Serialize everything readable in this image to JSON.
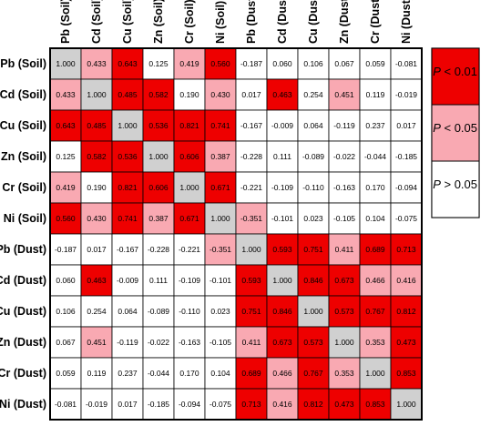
{
  "chart_data": {
    "type": "heatmap",
    "rows": [
      "Pb (Soil)",
      "Cd (Soil)",
      "Cu (Soil)",
      "Zn (Soil)",
      "Cr (Soil)",
      "Ni (Soil)",
      "Pb (Dust)",
      "Cd (Dust)",
      "Cu (Dust)",
      "Zn (Dust)",
      "Cr (Dust)",
      "Ni (Dust)"
    ],
    "columns": [
      "Pb (Soil)",
      "Cd (Soil)",
      "Cu (Soil)",
      "Zn (Soil)",
      "Cr (Soil)",
      "Ni (Soil)",
      "Pb (Dust)",
      "Cd (Dust)",
      "Cu (Dust)",
      "Zn (Dust)",
      "Cr (Dust)",
      "Ni (Dust)"
    ],
    "values": [
      [
        "1.000",
        "0.433",
        "0.643",
        "0.125",
        "0.419",
        "0.560",
        "-0.187",
        "0.060",
        "0.106",
        "0.067",
        "0.059",
        "-0.081"
      ],
      [
        "0.433",
        "1.000",
        "0.485",
        "0.582",
        "0.190",
        "0.430",
        "0.017",
        "0.463",
        "0.254",
        "0.451",
        "0.119",
        "-0.019"
      ],
      [
        "0.643",
        "0.485",
        "1.000",
        "0.536",
        "0.821",
        "0.741",
        "-0.167",
        "-0.009",
        "0.064",
        "-0.119",
        "0.237",
        "0.017"
      ],
      [
        "0.125",
        "0.582",
        "0.536",
        "1.000",
        "0.606",
        "0.387",
        "-0.228",
        "0.111",
        "-0.089",
        "-0.022",
        "-0.044",
        "-0.185"
      ],
      [
        "0.419",
        "0.190",
        "0.821",
        "0.606",
        "1.000",
        "0.671",
        "-0.221",
        "-0.109",
        "-0.110",
        "-0.163",
        "0.170",
        "-0.094"
      ],
      [
        "0.560",
        "0.430",
        "0.741",
        "0.387",
        "0.671",
        "1.000",
        "-0.351",
        "-0.101",
        "0.023",
        "-0.105",
        "0.104",
        "-0.075"
      ],
      [
        "-0.187",
        "0.017",
        "-0.167",
        "-0.228",
        "-0.221",
        "-0.351",
        "1.000",
        "0.593",
        "0.751",
        "0.411",
        "0.689",
        "0.713"
      ],
      [
        "0.060",
        "0.463",
        "-0.009",
        "0.111",
        "-0.109",
        "-0.101",
        "0.593",
        "1.000",
        "0.846",
        "0.673",
        "0.466",
        "0.416"
      ],
      [
        "0.106",
        "0.254",
        "0.064",
        "-0.089",
        "-0.110",
        "0.023",
        "0.751",
        "0.846",
        "1.000",
        "0.573",
        "0.767",
        "0.812"
      ],
      [
        "0.067",
        "0.451",
        "-0.119",
        "-0.022",
        "-0.163",
        "-0.105",
        "0.411",
        "0.673",
        "0.573",
        "1.000",
        "0.353",
        "0.473"
      ],
      [
        "0.059",
        "0.119",
        "0.237",
        "-0.044",
        "0.170",
        "0.104",
        "0.689",
        "0.466",
        "0.767",
        "0.353",
        "1.000",
        "0.853"
      ],
      [
        "-0.081",
        "-0.019",
        "0.017",
        "-0.185",
        "-0.094",
        "-0.075",
        "0.713",
        "0.416",
        "0.812",
        "0.473",
        "0.853",
        "1.000"
      ]
    ],
    "significance": [
      [
        "d",
        "w",
        "s",
        "n",
        "w",
        "s",
        "n",
        "n",
        "n",
        "n",
        "n",
        "n"
      ],
      [
        "w",
        "d",
        "s",
        "s",
        "n",
        "w",
        "n",
        "s",
        "n",
        "w",
        "n",
        "n"
      ],
      [
        "s",
        "s",
        "d",
        "s",
        "s",
        "s",
        "n",
        "n",
        "n",
        "n",
        "n",
        "n"
      ],
      [
        "n",
        "s",
        "s",
        "d",
        "s",
        "w",
        "n",
        "n",
        "n",
        "n",
        "n",
        "n"
      ],
      [
        "w",
        "n",
        "s",
        "s",
        "d",
        "s",
        "n",
        "n",
        "n",
        "n",
        "n",
        "n"
      ],
      [
        "s",
        "w",
        "s",
        "w",
        "s",
        "d",
        "w",
        "n",
        "n",
        "n",
        "n",
        "n"
      ],
      [
        "n",
        "n",
        "n",
        "n",
        "n",
        "w",
        "d",
        "s",
        "s",
        "w",
        "s",
        "s"
      ],
      [
        "n",
        "s",
        "n",
        "n",
        "n",
        "n",
        "s",
        "d",
        "s",
        "s",
        "w",
        "w"
      ],
      [
        "n",
        "n",
        "n",
        "n",
        "n",
        "n",
        "s",
        "s",
        "d",
        "s",
        "s",
        "s"
      ],
      [
        "n",
        "w",
        "n",
        "n",
        "n",
        "n",
        "w",
        "s",
        "s",
        "d",
        "w",
        "s"
      ],
      [
        "n",
        "n",
        "n",
        "n",
        "n",
        "n",
        "s",
        "w",
        "s",
        "w",
        "d",
        "s"
      ],
      [
        "n",
        "n",
        "n",
        "n",
        "n",
        "n",
        "s",
        "w",
        "s",
        "s",
        "s",
        "d"
      ]
    ],
    "legend": [
      {
        "key": "s",
        "label": "P < 0.01",
        "color": "#ee0000"
      },
      {
        "key": "w",
        "label": "P < 0.05",
        "color": "#f9a9b2"
      },
      {
        "key": "n",
        "label": "P > 0.05",
        "color": "#ffffff"
      }
    ],
    "diagonal_color": "#d0d0d0",
    "legend_position": "right"
  }
}
